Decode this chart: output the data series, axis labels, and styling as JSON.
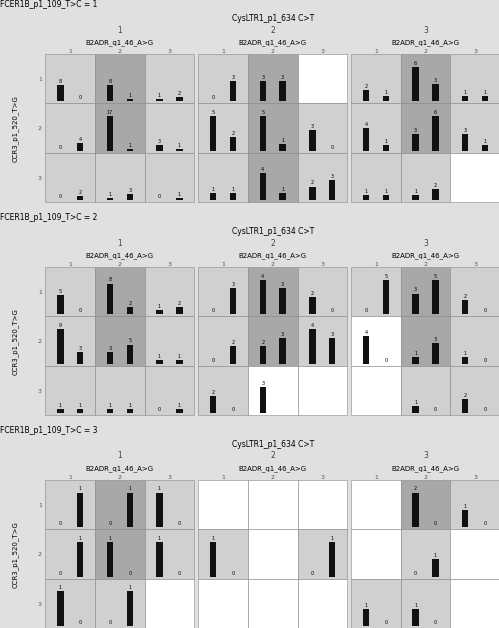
{
  "title_row": [
    "FCER1B_p1_109_T>C = 1",
    "FCER1B_p1_109_T>C = 2",
    "FCER1B_p1_109_T>C = 3"
  ],
  "col_header": "CysLTR1_p1_634 C>T",
  "col_nums": [
    "1",
    "2",
    "3"
  ],
  "x_label": "B2ADR_q1_46_A>G",
  "y_label": "CCR3_p1_520_T>G",
  "panels": [
    [
      {
        "cells": [
          [
            [
              8,
              0
            ],
            [
              8,
              1
            ],
            [
              1,
              2
            ]
          ],
          [
            [
              0,
              4
            ],
            [
              17,
              1
            ],
            [
              3,
              1
            ]
          ],
          [
            [
              0,
              2
            ],
            [
              1,
              3
            ],
            [
              0,
              1
            ]
          ]
        ],
        "bg": [
          [
            "lg",
            "mg",
            "lg"
          ],
          [
            "lg",
            "mg",
            "lg"
          ],
          [
            "lg",
            "lg",
            "lg"
          ]
        ]
      },
      {
        "cells": [
          [
            [
              0,
              3
            ],
            [
              3,
              3
            ],
            [
              null,
              null
            ]
          ],
          [
            [
              5,
              2
            ],
            [
              5,
              1
            ],
            [
              3,
              0
            ]
          ],
          [
            [
              1,
              1
            ],
            [
              4,
              1
            ],
            [
              2,
              3
            ]
          ]
        ],
        "bg": [
          [
            "lg",
            "mg",
            "wh"
          ],
          [
            "lg",
            "mg",
            "lg"
          ],
          [
            "lg",
            "mg",
            "lg"
          ]
        ]
      },
      {
        "cells": [
          [
            [
              2,
              1
            ],
            [
              6,
              3
            ],
            [
              1,
              1
            ]
          ],
          [
            [
              4,
              1
            ],
            [
              3,
              6
            ],
            [
              3,
              1
            ]
          ],
          [
            [
              1,
              1
            ],
            [
              1,
              2
            ],
            [
              null,
              null
            ]
          ]
        ],
        "bg": [
          [
            "lg",
            "mg",
            "lg"
          ],
          [
            "lg",
            "mg",
            "lg"
          ],
          [
            "lg",
            "lg",
            "wh"
          ]
        ]
      }
    ],
    [
      {
        "cells": [
          [
            [
              5,
              0
            ],
            [
              8,
              2
            ],
            [
              1,
              2
            ]
          ],
          [
            [
              9,
              3
            ],
            [
              3,
              5
            ],
            [
              1,
              1
            ]
          ],
          [
            [
              1,
              1
            ],
            [
              1,
              1
            ],
            [
              0,
              1
            ]
          ]
        ],
        "bg": [
          [
            "lg",
            "mg",
            "lg"
          ],
          [
            "lg",
            "mg",
            "lg"
          ],
          [
            "lg",
            "lg",
            "lg"
          ]
        ]
      },
      {
        "cells": [
          [
            [
              0,
              3
            ],
            [
              4,
              3
            ],
            [
              2,
              0
            ]
          ],
          [
            [
              0,
              2
            ],
            [
              2,
              3
            ],
            [
              4,
              3
            ]
          ],
          [
            [
              2,
              0
            ],
            [
              3,
              null
            ],
            [
              null,
              null
            ]
          ]
        ],
        "bg": [
          [
            "lg",
            "mg",
            "lg"
          ],
          [
            "lg",
            "mg",
            "lg"
          ],
          [
            "lg",
            "wh",
            "wh"
          ]
        ]
      },
      {
        "cells": [
          [
            [
              0,
              5
            ],
            [
              3,
              5
            ],
            [
              2,
              0
            ]
          ],
          [
            [
              4,
              0
            ],
            [
              1,
              3
            ],
            [
              1,
              0
            ]
          ],
          [
            [
              null,
              null
            ],
            [
              1,
              0
            ],
            [
              2,
              0
            ]
          ]
        ],
        "bg": [
          [
            "lg",
            "mg",
            "lg"
          ],
          [
            "wh",
            "mg",
            "lg"
          ],
          [
            "wh",
            "lg",
            "lg"
          ]
        ]
      }
    ],
    [
      {
        "cells": [
          [
            [
              0,
              1
            ],
            [
              0,
              1
            ],
            [
              1,
              0
            ]
          ],
          [
            [
              0,
              1
            ],
            [
              1,
              0
            ],
            [
              1,
              0
            ]
          ],
          [
            [
              1,
              0
            ],
            [
              0,
              1
            ],
            [
              null,
              null
            ]
          ]
        ],
        "bg": [
          [
            "lg",
            "mg",
            "lg"
          ],
          [
            "lg",
            "mg",
            "lg"
          ],
          [
            "lg",
            "lg",
            "wh"
          ]
        ]
      },
      {
        "cells": [
          [
            [
              null,
              null
            ],
            [
              null,
              null
            ],
            [
              null,
              null
            ]
          ],
          [
            [
              1,
              0
            ],
            [
              null,
              null
            ],
            [
              0,
              1
            ]
          ],
          [
            [
              null,
              null
            ],
            [
              null,
              null
            ],
            [
              null,
              null
            ]
          ]
        ],
        "bg": [
          [
            "wh",
            "wh",
            "wh"
          ],
          [
            "lg",
            "wh",
            "lg"
          ],
          [
            "wh",
            "wh",
            "wh"
          ]
        ]
      },
      {
        "cells": [
          [
            [
              null,
              null
            ],
            [
              2,
              0
            ],
            [
              1,
              0
            ]
          ],
          [
            [
              null,
              null
            ],
            [
              0,
              1
            ],
            [
              null,
              null
            ]
          ],
          [
            [
              1,
              0
            ],
            [
              1,
              0
            ],
            [
              null,
              null
            ]
          ]
        ],
        "bg": [
          [
            "wh",
            "mg",
            "lg"
          ],
          [
            "wh",
            "lg",
            "wh"
          ],
          [
            "lg",
            "lg",
            "wh"
          ]
        ]
      }
    ]
  ],
  "bg_colors": {
    "lg": "#d0d0d0",
    "mg": "#a8a8a8",
    "wh": "#ffffff"
  },
  "bar_color": "#111111",
  "fig_bg": "#e0e0e0",
  "outer_bg": "#e0e0e0"
}
